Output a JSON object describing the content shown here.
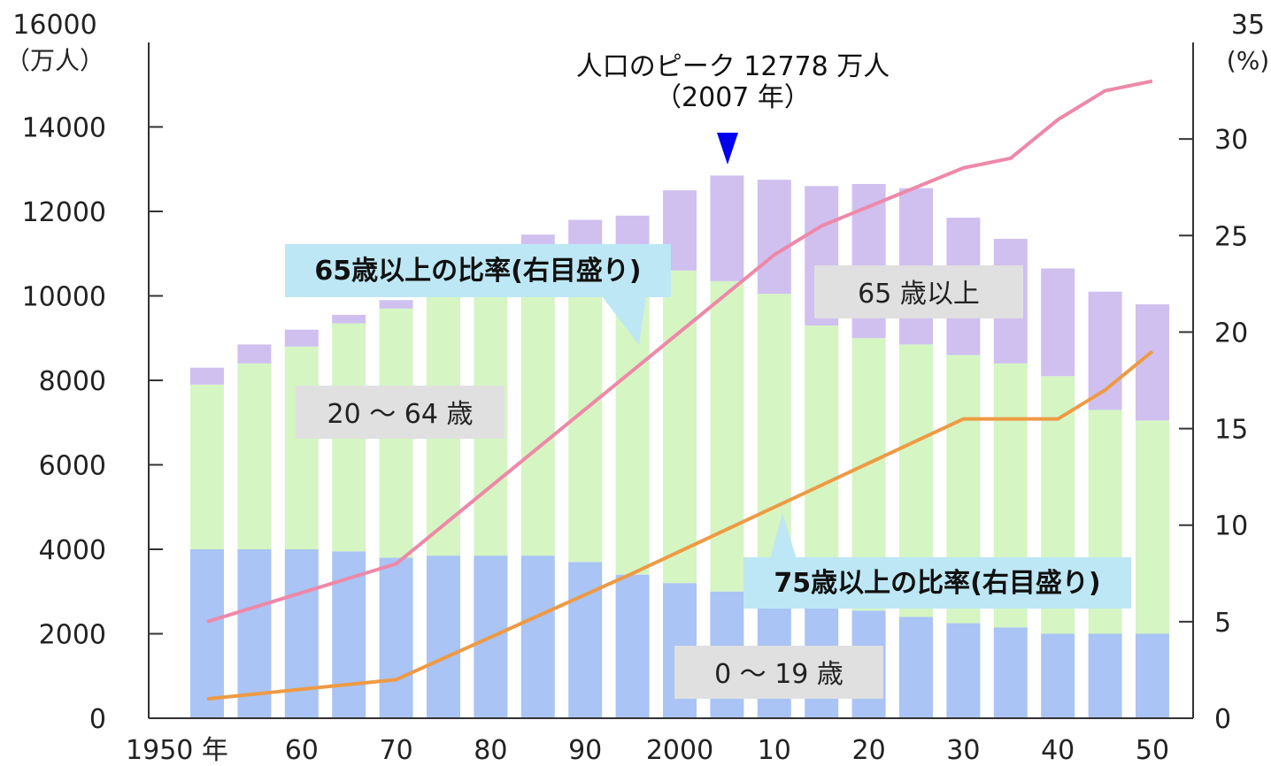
{
  "chart_data": {
    "type": "bar",
    "stacked": true,
    "y_left": {
      "unit_top": "16000",
      "unit_label": "（万人）",
      "ticks": [
        "0",
        "2000",
        "4000",
        "6000",
        "8000",
        "10000",
        "12000",
        "14000"
      ],
      "ylim": [
        0,
        16000
      ]
    },
    "y_right": {
      "unit_top": "35",
      "unit_label": "(%)",
      "ticks": [
        "0",
        "5",
        "10",
        "15",
        "20",
        "25",
        "30"
      ],
      "ylim": [
        0,
        35
      ]
    },
    "x_tick_labels": [
      "1950 年",
      "60",
      "70",
      "80",
      "90",
      "2000",
      "10",
      "20",
      "30",
      "40",
      "50"
    ],
    "categories": [
      1950,
      1955,
      1960,
      1965,
      1970,
      1975,
      1980,
      1985,
      1990,
      1995,
      2000,
      2005,
      2010,
      2015,
      2020,
      2025,
      2030,
      2035,
      2040,
      2045,
      2050
    ],
    "series": [
      {
        "name": "0 ～ 19 歳",
        "color": "#a9c4f5",
        "values": [
          4000,
          4000,
          4000,
          3950,
          3800,
          3850,
          3850,
          3850,
          3700,
          3400,
          3200,
          3000,
          2850,
          2700,
          2550,
          2400,
          2250,
          2150,
          2000,
          2000,
          2000
        ]
      },
      {
        "name": "20 ～ 64 歳",
        "color": "#d5f5c3",
        "values": [
          3900,
          4400,
          4800,
          5400,
          5900,
          6250,
          6500,
          6600,
          6800,
          7000,
          7400,
          7350,
          7200,
          6600,
          6450,
          6450,
          6350,
          6250,
          6100,
          5300,
          5050
        ]
      },
      {
        "name": "65 歳以上",
        "color": "#cfc0f0",
        "values": [
          400,
          450,
          400,
          200,
          200,
          200,
          250,
          1000,
          1300,
          1500,
          1900,
          2500,
          2700,
          3300,
          3650,
          3700,
          3250,
          2950,
          2550,
          2800,
          2750
        ]
      }
    ],
    "line_series": [
      {
        "name": "65歳以上の比率(右目盛り)",
        "color": "#ee88a8",
        "x": [
          1950,
          1970,
          2000,
          2005,
          2010,
          2015,
          2020,
          2030,
          2035,
          2040,
          2045,
          2050
        ],
        "values": [
          5,
          8,
          20,
          22,
          24,
          25.5,
          26.5,
          28.5,
          29,
          31,
          32.5,
          33
        ]
      },
      {
        "name": "75歳以上の比率(右目盛り)",
        "color": "#ee9a44",
        "x": [
          1950,
          1970,
          1995,
          2030,
          2040,
          2045,
          2050
        ],
        "values": [
          1,
          2,
          7.5,
          15.5,
          15.5,
          17,
          19
        ]
      }
    ],
    "annotations": {
      "peak_line1": "人口のピーク 12778 万人",
      "peak_line2": "（2007 年）",
      "ratio65_callout": "65歳以上の比率(右目盛り)",
      "ratio75_callout": "75歳以上の比率(右目盛り)",
      "label_65": "65 歳以上",
      "label_20_64": "20 ～ 64 歳",
      "label_0_19": "0 ～ 19 歳"
    },
    "peak_marker_color": "#0000ee",
    "callout_color": "#bde7f5",
    "label_box_color": "#e0e0e0"
  }
}
